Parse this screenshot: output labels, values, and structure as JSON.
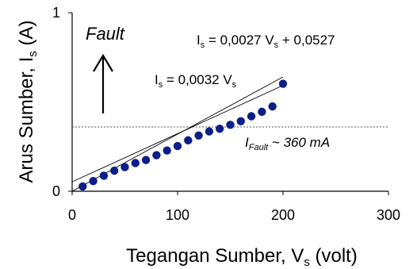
{
  "chart_data": {
    "type": "scatter",
    "xlabel": "Tegangan Sumber, V",
    "xlabel_sub": "s",
    "xlabel_unit": " (volt)",
    "ylabel": "Arus Sumber, I",
    "ylabel_sub": "s",
    "ylabel_unit": " (A)",
    "xlim": [
      0,
      300
    ],
    "ylim": [
      0,
      1
    ],
    "x_ticks": [
      0,
      100,
      200,
      300
    ],
    "y_ticks": [
      0,
      1
    ],
    "grid": false,
    "series": [
      {
        "x": [
          10,
          20,
          30,
          40,
          50,
          60,
          70,
          80,
          90,
          100,
          110,
          120,
          130,
          140,
          150,
          160,
          170,
          180,
          190,
          200
        ],
        "y": [
          0.027,
          0.057,
          0.087,
          0.115,
          0.135,
          0.158,
          0.175,
          0.202,
          0.228,
          0.253,
          0.285,
          0.312,
          0.335,
          0.35,
          0.372,
          0.392,
          0.42,
          0.445,
          0.475,
          0.602
        ]
      }
    ],
    "fits": [
      {
        "prefix": "I",
        "sub": "s",
        "text": " = 0,0032 V",
        "text_sub": "s",
        "slope": 0.0032,
        "intercept": 0,
        "x_range": [
          0,
          200
        ]
      },
      {
        "prefix": "I",
        "sub": "s",
        "text": " = 0,0027 V",
        "text_sub": "s",
        "text_tail": " + 0,0527",
        "slope": 0.0027,
        "intercept": 0.0527,
        "x_range": [
          0,
          200
        ]
      }
    ],
    "threshold": {
      "y": 0.36,
      "label": "I",
      "label_sub": "Fault",
      "label_tail": "  ~ 360 mA"
    },
    "annotations": {
      "fault_label": "Fault"
    },
    "colors": {
      "marker": "#0b1f8a",
      "line": "#000000"
    }
  }
}
